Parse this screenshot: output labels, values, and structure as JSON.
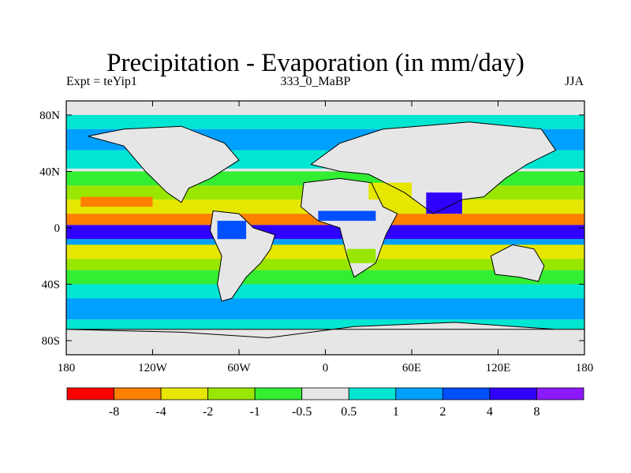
{
  "chart_data": {
    "type": "heatmap",
    "title": "Precipitation - Evaporation (in mm/day)",
    "subtitle_left": "Expt = teYip1",
    "subtitle_center": "333_0_MaBP",
    "subtitle_right": "JJA",
    "x_ticks": [
      "180",
      "120W",
      "60W",
      "0",
      "60E",
      "120E",
      "180"
    ],
    "y_ticks": [
      "80N",
      "40N",
      "0",
      "40S",
      "80S"
    ],
    "xlim": [
      -180,
      180
    ],
    "ylim": [
      -90,
      90
    ],
    "x_tick_values": [
      -180,
      -120,
      -60,
      0,
      60,
      120,
      180
    ],
    "y_tick_values": [
      80,
      40,
      0,
      -40,
      -80
    ],
    "colorbar": {
      "colors": [
        "#ff0000",
        "#ff8000",
        "#e6e600",
        "#99e600",
        "#33ee33",
        "#e6e6e6",
        "#00e6d2",
        "#00a0ff",
        "#0050ff",
        "#3000ff",
        "#8c1aff"
      ],
      "labels": [
        "-8",
        "-4",
        "-2",
        "-1",
        "-0.5",
        "0.5",
        "1",
        "2",
        "4",
        "8"
      ]
    },
    "zonal_bands": [
      {
        "lat": [
          70,
          80
        ],
        "class": 6
      },
      {
        "lat": [
          55,
          70
        ],
        "class": 7
      },
      {
        "lat": [
          42,
          55
        ],
        "class": 6
      },
      {
        "lat": [
          30,
          40
        ],
        "class": 4
      },
      {
        "lat": [
          20,
          30
        ],
        "class": 3
      },
      {
        "lat": [
          10,
          20
        ],
        "class": 2
      },
      {
        "lat": [
          2,
          10
        ],
        "class": 1
      },
      {
        "lat": [
          -8,
          2
        ],
        "class": 9
      },
      {
        "lat": [
          -12,
          -8
        ],
        "class": 7
      },
      {
        "lat": [
          -22,
          -12
        ],
        "class": 2
      },
      {
        "lat": [
          -30,
          -22
        ],
        "class": 3
      },
      {
        "lat": [
          -40,
          -30
        ],
        "class": 4
      },
      {
        "lat": [
          -50,
          -40
        ],
        "class": 6
      },
      {
        "lat": [
          -65,
          -50
        ],
        "class": 7
      },
      {
        "lat": [
          -72,
          -65
        ],
        "class": 6
      }
    ],
    "regions": [
      {
        "name": "south america",
        "poly": [
          [
            -78,
            12
          ],
          [
            -60,
            10
          ],
          [
            -50,
            0
          ],
          [
            -35,
            -5
          ],
          [
            -38,
            -15
          ],
          [
            -45,
            -25
          ],
          [
            -55,
            -35
          ],
          [
            -65,
            -50
          ],
          [
            -72,
            -52
          ],
          [
            -75,
            -40
          ],
          [
            -72,
            -20
          ],
          [
            -80,
            -2
          ]
        ],
        "class": 5
      },
      {
        "name": "africa",
        "poly": [
          [
            -15,
            32
          ],
          [
            10,
            35
          ],
          [
            32,
            32
          ],
          [
            40,
            15
          ],
          [
            50,
            10
          ],
          [
            42,
            -5
          ],
          [
            35,
            -25
          ],
          [
            20,
            -35
          ],
          [
            15,
            -20
          ],
          [
            10,
            0
          ],
          [
            -5,
            5
          ],
          [
            -17,
            15
          ]
        ],
        "class": 5
      },
      {
        "name": "eurasia",
        "poly": [
          [
            -10,
            45
          ],
          [
            10,
            60
          ],
          [
            40,
            70
          ],
          [
            100,
            75
          ],
          [
            150,
            70
          ],
          [
            160,
            55
          ],
          [
            140,
            45
          ],
          [
            125,
            35
          ],
          [
            110,
            22
          ],
          [
            95,
            20
          ],
          [
            75,
            10
          ],
          [
            55,
            25
          ],
          [
            30,
            38
          ],
          [
            10,
            40
          ]
        ],
        "class": 5
      },
      {
        "name": "north america",
        "poly": [
          [
            -165,
            65
          ],
          [
            -140,
            70
          ],
          [
            -100,
            72
          ],
          [
            -70,
            60
          ],
          [
            -60,
            48
          ],
          [
            -80,
            35
          ],
          [
            -95,
            28
          ],
          [
            -100,
            18
          ],
          [
            -110,
            25
          ],
          [
            -125,
            40
          ],
          [
            -140,
            58
          ]
        ],
        "class": 5
      },
      {
        "name": "australia",
        "poly": [
          [
            115,
            -20
          ],
          [
            130,
            -12
          ],
          [
            145,
            -15
          ],
          [
            152,
            -27
          ],
          [
            148,
            -38
          ],
          [
            135,
            -35
          ],
          [
            118,
            -33
          ]
        ],
        "class": 5
      },
      {
        "name": "antarctica",
        "poly": [
          [
            -180,
            -72
          ],
          [
            -100,
            -74
          ],
          [
            -40,
            -78
          ],
          [
            20,
            -70
          ],
          [
            90,
            -67
          ],
          [
            160,
            -72
          ],
          [
            180,
            -72
          ],
          [
            180,
            -90
          ],
          [
            -180,
            -90
          ]
        ],
        "class": 5
      },
      {
        "name": "sahel wet",
        "poly": [
          [
            -5,
            12
          ],
          [
            35,
            12
          ],
          [
            35,
            5
          ],
          [
            -5,
            5
          ]
        ],
        "class": 8
      },
      {
        "name": "monsoon india",
        "poly": [
          [
            70,
            25
          ],
          [
            95,
            25
          ],
          [
            95,
            10
          ],
          [
            70,
            10
          ]
        ],
        "class": 9
      },
      {
        "name": "south asia arid",
        "poly": [
          [
            30,
            32
          ],
          [
            60,
            32
          ],
          [
            60,
            20
          ],
          [
            30,
            20
          ]
        ],
        "class": 2
      },
      {
        "name": "amazon wet",
        "poly": [
          [
            -75,
            5
          ],
          [
            -55,
            5
          ],
          [
            -55,
            -8
          ],
          [
            -75,
            -8
          ]
        ],
        "class": 8
      },
      {
        "name": "south africa dry",
        "poly": [
          [
            15,
            -15
          ],
          [
            35,
            -15
          ],
          [
            35,
            -25
          ],
          [
            15,
            -25
          ]
        ],
        "class": 3
      },
      {
        "name": "n pacific dry",
        "poly": [
          [
            -170,
            22
          ],
          [
            -120,
            22
          ],
          [
            -120,
            15
          ],
          [
            -170,
            15
          ]
        ],
        "class": 1
      }
    ],
    "landmasses": [
      [
        [
          -78,
          12
        ],
        [
          -60,
          10
        ],
        [
          -50,
          0
        ],
        [
          -35,
          -5
        ],
        [
          -38,
          -15
        ],
        [
          -45,
          -25
        ],
        [
          -55,
          -35
        ],
        [
          -65,
          -50
        ],
        [
          -72,
          -52
        ],
        [
          -75,
          -40
        ],
        [
          -72,
          -20
        ],
        [
          -80,
          -2
        ]
      ],
      [
        [
          -15,
          32
        ],
        [
          10,
          35
        ],
        [
          32,
          32
        ],
        [
          40,
          15
        ],
        [
          50,
          10
        ],
        [
          42,
          -5
        ],
        [
          35,
          -25
        ],
        [
          20,
          -35
        ],
        [
          15,
          -20
        ],
        [
          10,
          0
        ],
        [
          -5,
          5
        ],
        [
          -17,
          15
        ]
      ],
      [
        [
          -10,
          45
        ],
        [
          10,
          60
        ],
        [
          40,
          70
        ],
        [
          100,
          75
        ],
        [
          150,
          70
        ],
        [
          160,
          55
        ],
        [
          140,
          45
        ],
        [
          125,
          35
        ],
        [
          110,
          22
        ],
        [
          95,
          20
        ],
        [
          75,
          10
        ],
        [
          55,
          25
        ],
        [
          30,
          38
        ],
        [
          10,
          40
        ]
      ],
      [
        [
          -165,
          65
        ],
        [
          -140,
          70
        ],
        [
          -100,
          72
        ],
        [
          -70,
          60
        ],
        [
          -60,
          48
        ],
        [
          -80,
          35
        ],
        [
          -95,
          28
        ],
        [
          -100,
          18
        ],
        [
          -110,
          25
        ],
        [
          -125,
          40
        ],
        [
          -140,
          58
        ]
      ],
      [
        [
          115,
          -20
        ],
        [
          130,
          -12
        ],
        [
          145,
          -15
        ],
        [
          152,
          -27
        ],
        [
          148,
          -38
        ],
        [
          135,
          -35
        ],
        [
          118,
          -33
        ]
      ],
      [
        [
          -180,
          -72
        ],
        [
          -100,
          -74
        ],
        [
          -40,
          -78
        ],
        [
          20,
          -70
        ],
        [
          90,
          -67
        ],
        [
          160,
          -72
        ],
        [
          180,
          -72
        ]
      ]
    ]
  }
}
